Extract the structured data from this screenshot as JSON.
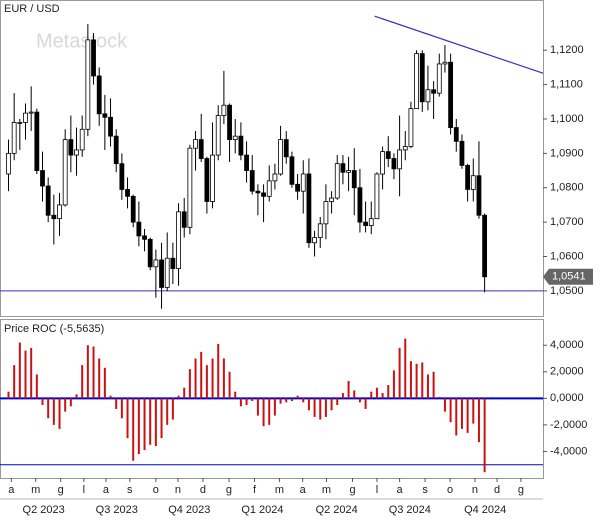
{
  "chart_data": [
    {
      "type": "candlestick",
      "title": "EUR / USD",
      "watermark": "Metastock",
      "open": [
        1.084,
        1.09,
        1.099,
        1.099,
        1.1017,
        1.102,
        1.085,
        1.0805,
        1.072,
        1.071,
        1.075,
        1.094,
        1.0895,
        1.091,
        1.097,
        1.123,
        1.1125,
        1.1015,
        1.1005,
        1.095,
        1.087,
        1.0795,
        1.0775,
        1.07,
        1.066,
        1.065,
        1.057,
        1.059,
        1.051,
        1.0595,
        1.0565,
        1.073,
        1.0685,
        1.0915,
        1.094,
        1.0885,
        1.076,
        1.0895,
        1.101,
        1.104,
        1.094,
        1.095,
        1.0895,
        1.085,
        1.079,
        1.0785,
        1.0775,
        1.082,
        1.084,
        1.094,
        1.089,
        1.081,
        1.079,
        1.084,
        1.064,
        1.0655,
        1.0695,
        1.076,
        1.077,
        1.087,
        1.0845,
        1.085,
        1.08,
        1.07,
        1.069,
        1.071,
        1.084,
        1.0905,
        1.0885,
        1.0855,
        1.091,
        1.092,
        1.103,
        1.119,
        1.105,
        1.1085,
        1.1075,
        1.116,
        1.1165,
        1.0975,
        1.0935,
        1.0865,
        1.0795,
        1.0835,
        1.072
      ],
      "high": [
        1.094,
        1.1075,
        1.1,
        1.1045,
        1.1095,
        1.103,
        1.0905,
        1.083,
        1.078,
        1.0785,
        1.097,
        1.101,
        1.0975,
        1.101,
        1.1276,
        1.125,
        1.115,
        1.107,
        1.106,
        1.097,
        1.09,
        1.083,
        1.078,
        1.076,
        1.068,
        1.0655,
        1.062,
        1.064,
        1.067,
        1.064,
        1.0755,
        1.077,
        1.0925,
        1.0965,
        1.1015,
        1.089,
        1.099,
        1.104,
        1.114,
        1.1045,
        1.1,
        1.099,
        1.0935,
        1.0895,
        1.081,
        1.081,
        1.0865,
        1.087,
        1.098,
        1.0965,
        1.0905,
        1.084,
        1.088,
        1.0885,
        1.0675,
        1.0715,
        1.081,
        1.079,
        1.0895,
        1.0895,
        1.089,
        1.0915,
        1.0855,
        1.076,
        1.076,
        1.0845,
        1.092,
        1.095,
        1.09,
        1.101,
        1.0965,
        1.105,
        1.12,
        1.12,
        1.1155,
        1.111,
        1.119,
        1.1215,
        1.119,
        1.1,
        1.0955,
        1.087,
        1.0885,
        1.0935,
        1.0725
      ],
      "low": [
        1.079,
        1.088,
        1.091,
        1.094,
        1.0965,
        1.084,
        1.076,
        1.07,
        1.0635,
        1.066,
        1.0745,
        1.0845,
        1.0835,
        1.089,
        1.095,
        1.11,
        1.098,
        1.091,
        1.092,
        1.0845,
        1.0765,
        1.074,
        1.0685,
        1.063,
        1.0615,
        1.056,
        1.048,
        1.0448,
        1.05,
        1.052,
        1.0515,
        1.0655,
        1.0665,
        1.085,
        1.0875,
        1.0725,
        1.074,
        1.088,
        1.0985,
        1.0875,
        1.09,
        1.088,
        1.0815,
        1.078,
        1.072,
        1.07,
        1.076,
        1.0795,
        1.0835,
        1.087,
        1.08,
        1.0765,
        1.0725,
        1.0625,
        1.06,
        1.0625,
        1.065,
        1.0725,
        1.0765,
        1.081,
        1.079,
        1.072,
        1.067,
        1.067,
        1.0665,
        1.071,
        1.0795,
        1.086,
        1.0825,
        1.0775,
        1.088,
        1.0915,
        1.103,
        1.102,
        1.1025,
        1.1,
        1.1065,
        1.1135,
        1.0955,
        1.0905,
        1.0855,
        1.076,
        1.076,
        1.071,
        1.0496
      ],
      "close": [
        1.09,
        1.099,
        1.099,
        1.1017,
        1.102,
        1.085,
        1.0805,
        1.072,
        1.071,
        1.075,
        1.094,
        1.0895,
        1.091,
        1.097,
        1.123,
        1.1125,
        1.1015,
        1.1005,
        1.095,
        1.087,
        1.0795,
        1.0775,
        1.07,
        1.066,
        1.065,
        1.057,
        1.059,
        1.051,
        1.0595,
        1.0565,
        1.073,
        1.0685,
        1.0915,
        1.094,
        1.0885,
        1.076,
        1.0895,
        1.101,
        1.104,
        1.094,
        1.095,
        1.0895,
        1.085,
        1.079,
        1.0785,
        1.0775,
        1.082,
        1.084,
        1.094,
        1.089,
        1.081,
        1.079,
        1.084,
        1.064,
        1.0655,
        1.0695,
        1.076,
        1.077,
        1.087,
        1.0845,
        1.085,
        1.08,
        1.07,
        1.069,
        1.071,
        1.084,
        1.0905,
        1.0885,
        1.0855,
        1.091,
        1.092,
        1.103,
        1.119,
        1.105,
        1.1085,
        1.1075,
        1.116,
        1.1165,
        1.0975,
        1.0935,
        1.0865,
        1.0795,
        1.0835,
        1.072,
        1.0541
      ],
      "up_color": "#ffffff",
      "down_color": "#000000",
      "line_color": "#3333bb",
      "xlim": [
        -1.5,
        94.3
      ],
      "ylim": [
        1.0427,
        1.1346
      ],
      "yticks": [
        {
          "value": 1.05,
          "label": "1,0500"
        },
        {
          "value": 1.06,
          "label": "1,0600"
        },
        {
          "value": 1.07,
          "label": "1,0700"
        },
        {
          "value": 1.08,
          "label": "1,0800"
        },
        {
          "value": 1.09,
          "label": "1,0900"
        },
        {
          "value": 1.1,
          "label": "1,1000"
        },
        {
          "value": 1.11,
          "label": "1,1100"
        },
        {
          "value": 1.12,
          "label": "1,1200"
        }
      ],
      "hlines": [
        1.05
      ],
      "trendline": {
        "x": [
          64.6,
          94.3
        ],
        "y": [
          1.1299,
          1.1133
        ]
      },
      "last_price": {
        "value": 1.0541,
        "label": "1,0541"
      }
    },
    {
      "type": "bar",
      "title": "Price ROC (-5,5635)",
      "color": "#cc1111",
      "line_color": "#0000cc",
      "values": [
        0.5,
        2.5,
        4.2,
        3.6,
        3.8,
        1.8,
        -0.5,
        -1.5,
        -2.0,
        -2.3,
        -1.0,
        -0.6,
        0.3,
        2.5,
        4.0,
        3.9,
        3.0,
        2.3,
        0.2,
        -0.8,
        -1.5,
        -3.0,
        -4.7,
        -4.2,
        -3.9,
        -3.5,
        -3.6,
        -3.0,
        -2.0,
        -1.6,
        0.2,
        0.8,
        2.2,
        3.0,
        3.5,
        2.5,
        3.0,
        4.1,
        3.0,
        2.0,
        0.5,
        -0.6,
        -0.5,
        -0.2,
        -1.3,
        -2.1,
        -2.0,
        -1.3,
        -0.4,
        -0.3,
        -0.2,
        0.2,
        -0.3,
        -0.9,
        -1.4,
        -1.6,
        -1.4,
        -0.9,
        -0.5,
        0.4,
        1.3,
        0.6,
        -0.3,
        -0.8,
        0.5,
        0.8,
        0.4,
        1.0,
        2.1,
        3.8,
        4.5,
        2.8,
        2.6,
        2.7,
        1.8,
        2.0,
        0.1,
        -1.0,
        -1.8,
        -2.8,
        -2.3,
        -2.6,
        -1.9,
        -3.3,
        -5.5635
      ],
      "xlim": [
        -1.5,
        94.3
      ],
      "ylim": [
        -6.0,
        5.9
      ],
      "yticks": [
        {
          "value": -4,
          "label": "-4,0000"
        },
        {
          "value": -2,
          "label": "-2,0000"
        },
        {
          "value": 0,
          "label": "0,0000"
        },
        {
          "value": 2,
          "label": "2,0000"
        },
        {
          "value": 4,
          "label": "4,0000"
        }
      ],
      "hlines": [
        0,
        -5
      ],
      "xticks": [
        {
          "value": 0.5,
          "label": "a"
        },
        {
          "value": 4.8,
          "label": "m"
        },
        {
          "value": 9.2,
          "label": "g"
        },
        {
          "value": 13.3,
          "label": "l"
        },
        {
          "value": 17.2,
          "label": "a"
        },
        {
          "value": 21.4,
          "label": "s"
        },
        {
          "value": 26.0,
          "label": "o"
        },
        {
          "value": 29.9,
          "label": "n"
        },
        {
          "value": 34.3,
          "label": "d"
        },
        {
          "value": 38.9,
          "label": "g"
        },
        {
          "value": 43.4,
          "label": "f"
        },
        {
          "value": 47.8,
          "label": "m"
        },
        {
          "value": 51.9,
          "label": "a"
        },
        {
          "value": 56.1,
          "label": "m"
        },
        {
          "value": 60.7,
          "label": "g"
        },
        {
          "value": 65.0,
          "label": "l"
        },
        {
          "value": 69.0,
          "label": "a"
        },
        {
          "value": 73.5,
          "label": "s"
        },
        {
          "value": 77.9,
          "label": "o"
        },
        {
          "value": 82.3,
          "label": "n"
        },
        {
          "value": 86.2,
          "label": "d"
        },
        {
          "value": 90.4,
          "label": "g"
        }
      ],
      "quarter_ticks": [
        {
          "value": 6.2,
          "label": "Q2 2023"
        },
        {
          "value": 19.1,
          "label": "Q3 2023"
        },
        {
          "value": 31.9,
          "label": "Q4 2023"
        },
        {
          "value": 44.8,
          "label": "Q1 2024"
        },
        {
          "value": 57.9,
          "label": "Q2 2024"
        },
        {
          "value": 70.8,
          "label": "Q3 2024"
        },
        {
          "value": 84.1,
          "label": "Q4 2024"
        }
      ]
    }
  ]
}
